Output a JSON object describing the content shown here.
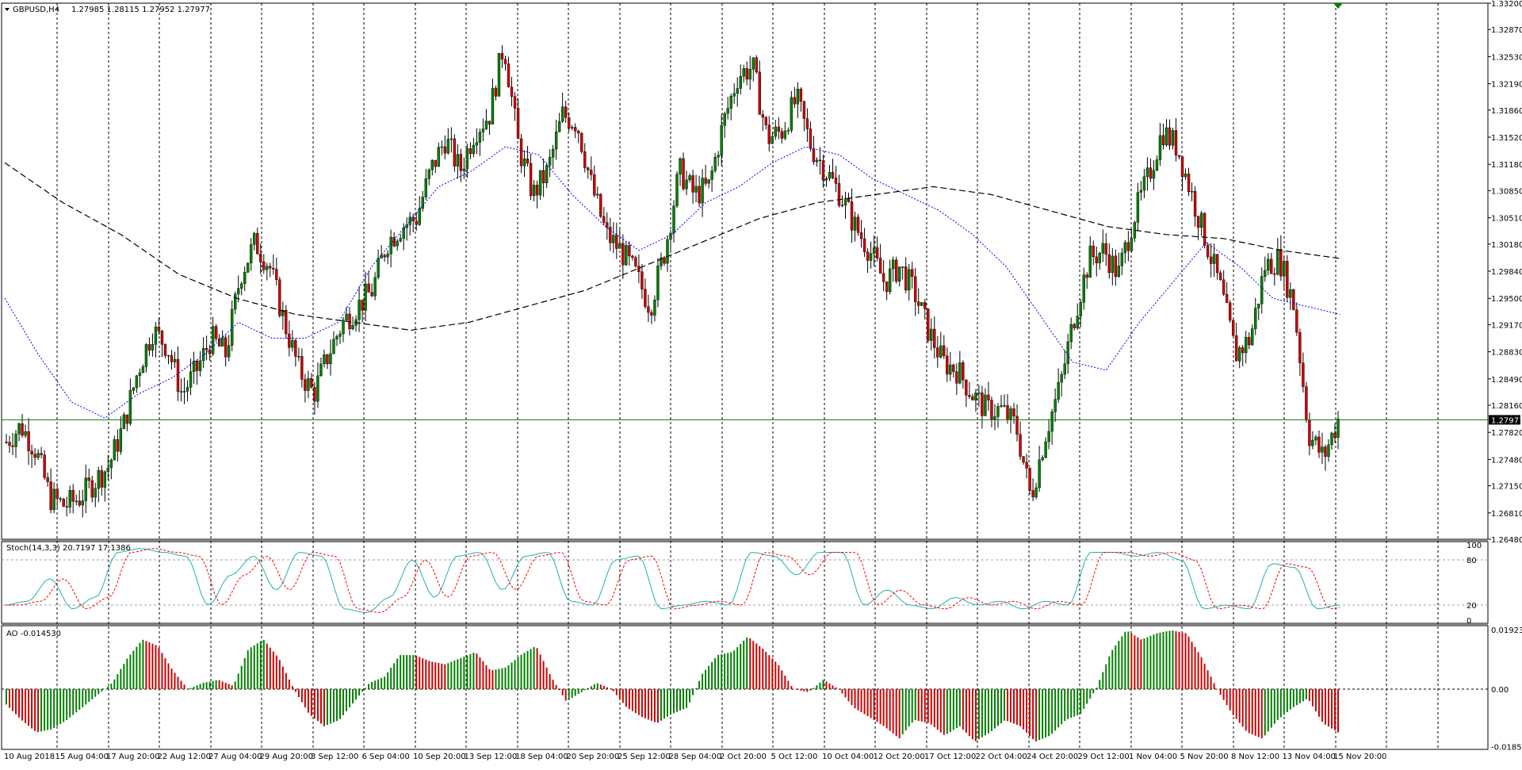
{
  "header": {
    "symbol": "GBPUSD,H4",
    "ohlc": "1.27985 1.28115 1.27952 1.27977"
  },
  "colors": {
    "bull": "#008000",
    "bear": "#cc0000",
    "ma_fast": "#0000ff",
    "ma_slow": "#000000",
    "price_line": "#008000",
    "grid": "#000000"
  },
  "chart_data": [
    {
      "type": "candlestick",
      "title": "GBPUSD,H4",
      "ylim": [
        1.2648,
        1.332
      ],
      "y_ticks": [
        "1.33200",
        "1.32870",
        "1.32530",
        "1.32190",
        "1.31860",
        "1.31520",
        "1.31180",
        "1.30850",
        "1.30510",
        "1.30180",
        "1.29840",
        "1.29500",
        "1.29170",
        "1.28830",
        "1.28490",
        "1.28160",
        "1.27820",
        "1.27480",
        "1.27150",
        "1.26810",
        "1.26480"
      ],
      "current_price": "1.27977",
      "x_labels": [
        "10 Aug 2018",
        "15 Aug 04:00",
        "17 Aug 20:00",
        "22 Aug 12:00",
        "27 Aug 04:00",
        "29 Aug 20:00",
        "3 Sep 12:00",
        "6 Sep 04:00",
        "10 Sep 20:00",
        "13 Sep 12:00",
        "18 Sep 04:00",
        "20 Sep 20:00",
        "25 Sep 12:00",
        "28 Sep 04:00",
        "2 Oct 20:00",
        "5 Oct 12:00",
        "10 Oct 04:00",
        "12 Oct 20:00",
        "17 Oct 12:00",
        "22 Oct 04:00",
        "24 Oct 20:00",
        "29 Oct 12:00",
        "1 Nov 04:00",
        "5 Nov 20:00",
        "8 Nov 12:00",
        "13 Nov 04:00",
        "15 Nov 20:00"
      ],
      "close_path": [
        1.277,
        1.279,
        1.276,
        1.27,
        1.269,
        1.27,
        1.272,
        1.274,
        1.279,
        1.286,
        1.291,
        1.289,
        1.283,
        1.286,
        1.29,
        1.288,
        1.298,
        1.302,
        1.299,
        1.292,
        1.286,
        1.283,
        1.288,
        1.292,
        1.294,
        1.296,
        1.302,
        1.304,
        1.305,
        1.311,
        1.315,
        1.311,
        1.316,
        1.318,
        1.327,
        1.314,
        1.308,
        1.311,
        1.318,
        1.317,
        1.309,
        1.303,
        1.301,
        1.298,
        1.294,
        1.301,
        1.311,
        1.308,
        1.309,
        1.317,
        1.323,
        1.324,
        1.315,
        1.316,
        1.32,
        1.314,
        1.311,
        1.308,
        1.304,
        1.301,
        1.297,
        1.299,
        1.296,
        1.291,
        1.287,
        1.286,
        1.283,
        1.281,
        1.281,
        1.279,
        1.27,
        1.278,
        1.284,
        1.293,
        1.3,
        1.301,
        1.298,
        1.305,
        1.31,
        1.316,
        1.314,
        1.308,
        1.302,
        1.296,
        1.288,
        1.29,
        1.299,
        1.3,
        1.294,
        1.278,
        1.275,
        1.2798
      ],
      "ma_fast_path": [
        1.295,
        1.288,
        1.282,
        1.28,
        1.283,
        1.285,
        1.288,
        1.292,
        1.29,
        1.29,
        1.292,
        1.299,
        1.304,
        1.309,
        1.311,
        1.314,
        1.313,
        1.308,
        1.304,
        1.301,
        1.303,
        1.307,
        1.309,
        1.312,
        1.314,
        1.313,
        1.31,
        1.308,
        1.306,
        1.303,
        1.299,
        1.293,
        1.287,
        1.286,
        1.292,
        1.297,
        1.302,
        1.299,
        1.295,
        1.294,
        1.293
      ],
      "ma_slow_path": [
        1.312,
        1.307,
        1.303,
        1.298,
        1.295,
        1.293,
        1.292,
        1.291,
        1.292,
        1.294,
        1.296,
        1.299,
        1.302,
        1.305,
        1.307,
        1.308,
        1.309,
        1.308,
        1.306,
        1.304,
        1.303,
        1.3025,
        1.301,
        1.3
      ],
      "series": [
        {
          "name": "GBPUSD,H4"
        }
      ]
    },
    {
      "type": "line",
      "title": "Stoch(14,3,3) 20.7197 17.1386",
      "ylim": [
        0,
        100
      ],
      "y_ticks": [
        "100",
        "80",
        "20",
        "0"
      ],
      "levels": [
        80,
        20
      ],
      "main_path": [
        20,
        25,
        55,
        15,
        30,
        90,
        95,
        90,
        85,
        20,
        60,
        85,
        40,
        90,
        85,
        15,
        10,
        30,
        80,
        30,
        85,
        90,
        40,
        85,
        90,
        25,
        20,
        80,
        85,
        15,
        20,
        25,
        20,
        90,
        85,
        60,
        90,
        90,
        20,
        40,
        20,
        15,
        30,
        20,
        25,
        15,
        25,
        20,
        90,
        90,
        85,
        90,
        80,
        15,
        20,
        15,
        75,
        70,
        15,
        20
      ]
    },
    {
      "type": "bar",
      "title": "AO -0.014530",
      "ylim": [
        -0.0195,
        0.0205
      ],
      "y_ticks": [
        "0.019239",
        "0.00",
        "-0.01856"
      ],
      "value_path": [
        -0.005,
        -0.01,
        -0.014,
        -0.013,
        -0.01,
        -0.006,
        -0.002,
        0.002,
        0.01,
        0.016,
        0.014,
        0.006,
        0.0,
        0.002,
        0.003,
        0.001,
        0.013,
        0.016,
        0.01,
        0.0,
        -0.008,
        -0.012,
        -0.01,
        -0.004,
        0.002,
        0.004,
        0.011,
        0.011,
        0.009,
        0.008,
        0.01,
        0.012,
        0.006,
        0.007,
        0.011,
        0.014,
        0.004,
        -0.004,
        -0.001,
        0.002,
        0.0,
        -0.006,
        -0.009,
        -0.011,
        -0.008,
        -0.006,
        0.005,
        0.011,
        0.012,
        0.017,
        0.013,
        0.008,
        0.0,
        -0.001,
        0.003,
        0.0,
        -0.006,
        -0.009,
        -0.012,
        -0.016,
        -0.01,
        -0.011,
        -0.015,
        -0.012,
        -0.017,
        -0.014,
        -0.01,
        -0.012,
        -0.017,
        -0.015,
        -0.01,
        -0.008,
        0.0,
        0.012,
        0.019,
        0.016,
        0.018,
        0.019,
        0.018,
        0.01,
        0.0,
        -0.008,
        -0.014,
        -0.016,
        -0.01,
        -0.006,
        -0.003,
        -0.011,
        -0.014
      ]
    }
  ]
}
